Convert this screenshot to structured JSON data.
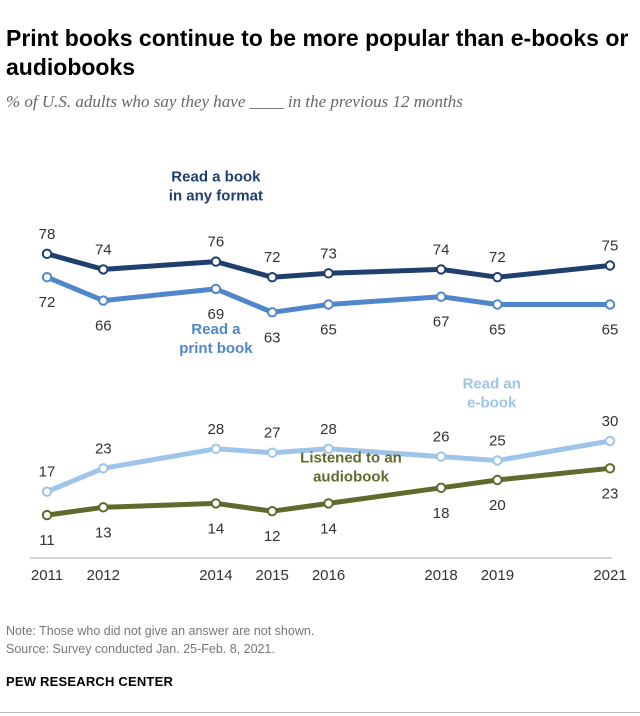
{
  "title": "Print books continue to be more popular than e-books or audiobooks",
  "subtitle": "% of U.S. adults who say they have ____ in the previous 12 months",
  "note": "Note: Those who did not give an answer are not shown.",
  "source": "Source: Survey conducted Jan. 25-Feb. 8, 2021.",
  "organization": "PEW RESEARCH CENTER",
  "chart_data": {
    "type": "line",
    "title": "Print books continue to be more popular than e-books or audiobooks",
    "ylabel": "% of U.S. adults",
    "ylim": [
      0,
      100
    ],
    "x": [
      2011,
      2012,
      2014,
      2015,
      2016,
      2018,
      2019,
      2021
    ],
    "x_labels": [
      "2011",
      "2012",
      "2014",
      "2015",
      "2016",
      "2018",
      "2019",
      "2021"
    ],
    "series": [
      {
        "name": "Read a book in any format",
        "label_lines": [
          "Read a book",
          "in any format"
        ],
        "color": "#1f3f6e",
        "values": [
          78,
          74,
          76,
          72,
          73,
          74,
          72,
          75
        ],
        "label_pos": [
          "above",
          "above",
          "above",
          "above",
          "above",
          "above",
          "above",
          "above"
        ]
      },
      {
        "name": "Read a print book",
        "label_lines": [
          "Read a",
          "print book"
        ],
        "color": "#4f86cc",
        "values": [
          72,
          66,
          69,
          63,
          65,
          67,
          65,
          65
        ],
        "label_pos": [
          "below",
          "below",
          "below",
          "below",
          "below",
          "below",
          "below",
          "below"
        ]
      },
      {
        "name": "Read an e-book",
        "label_lines": [
          "Read an",
          "e-book"
        ],
        "color": "#9fc4ea",
        "values": [
          17,
          23,
          28,
          27,
          28,
          26,
          25,
          30
        ],
        "label_pos": [
          "above",
          "above",
          "above",
          "above",
          "above",
          "above",
          "above",
          "above"
        ]
      },
      {
        "name": "Listened to an audiobook",
        "label_lines": [
          "Listened to an",
          "audiobook"
        ],
        "color": "#5e6b2d",
        "values": [
          11,
          13,
          14,
          12,
          14,
          18,
          20,
          23
        ],
        "label_pos": [
          "below",
          "below",
          "below",
          "below",
          "below",
          "below",
          "below",
          "below"
        ]
      }
    ]
  }
}
